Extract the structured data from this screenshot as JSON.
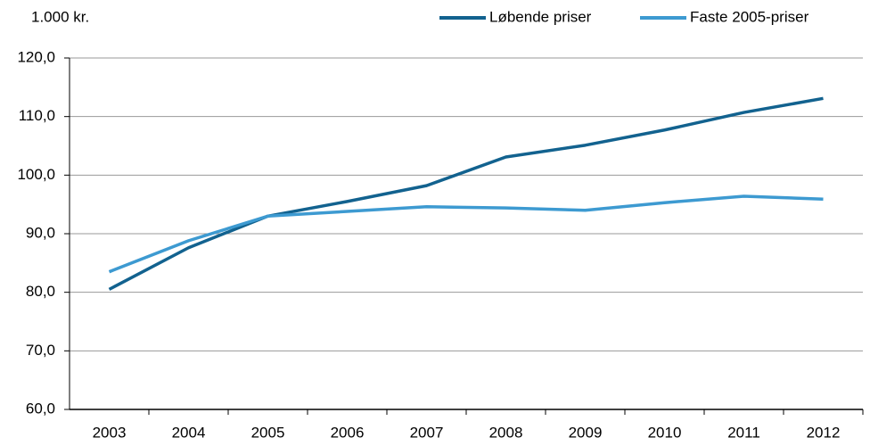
{
  "chart_data": {
    "type": "line",
    "y_label": "1.000 kr.",
    "categories": [
      "2003",
      "2004",
      "2005",
      "2006",
      "2007",
      "2008",
      "2009",
      "2010",
      "2011",
      "2012"
    ],
    "series": [
      {
        "name": "Løbende priser",
        "color": "#12628f",
        "values": [
          80.5,
          87.6,
          93.0,
          95.5,
          98.2,
          103.1,
          105.1,
          107.7,
          110.7,
          113.1
        ]
      },
      {
        "name": "Faste 2005-priser",
        "color": "#3d9ad1",
        "values": [
          83.5,
          88.8,
          93.0,
          93.8,
          94.6,
          94.4,
          94.0,
          95.3,
          96.4,
          95.9
        ]
      }
    ],
    "ylim": [
      60,
      120
    ],
    "yticks": [
      {
        "value": 60,
        "label": "60,0"
      },
      {
        "value": 70,
        "label": "70,0"
      },
      {
        "value": 80,
        "label": "80,0"
      },
      {
        "value": 90,
        "label": "90,0"
      },
      {
        "value": 100,
        "label": "100,0"
      },
      {
        "value": 110,
        "label": "110,0"
      },
      {
        "value": 120,
        "label": "120,0"
      }
    ],
    "grid": true,
    "legend": "top-right"
  }
}
